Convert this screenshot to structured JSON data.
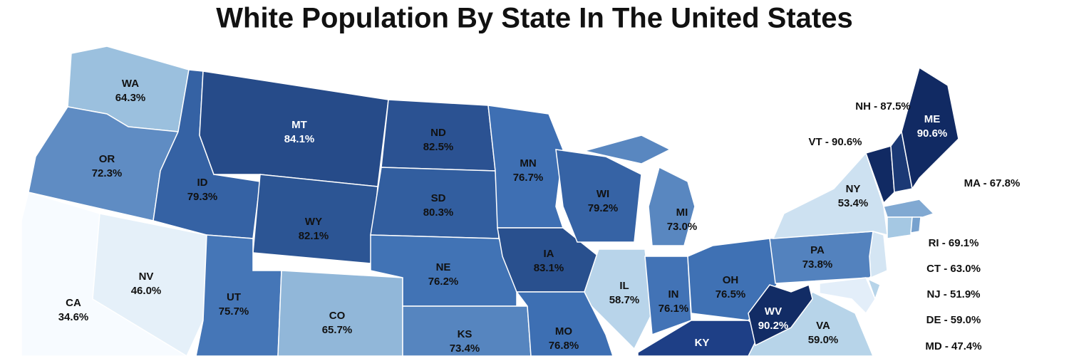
{
  "title": "White Population By State In The United States",
  "colors": [
    "#f7fbff",
    "#e1edf8",
    "#a8cbe4",
    "#3e70b4",
    "#112a63"
  ],
  "states": [
    {
      "abbr": "WA",
      "value": 64.3,
      "value_label": "64.3%"
    },
    {
      "abbr": "OR",
      "value": 72.3,
      "value_label": "72.3%"
    },
    {
      "abbr": "CA",
      "value": 34.6,
      "value_label": "34.6%"
    },
    {
      "abbr": "NV",
      "value": 46.0,
      "value_label": "46.0%"
    },
    {
      "abbr": "ID",
      "value": 79.3,
      "value_label": "79.3%"
    },
    {
      "abbr": "MT",
      "value": 84.1,
      "value_label": "84.1%"
    },
    {
      "abbr": "WY",
      "value": 82.1,
      "value_label": "82.1%"
    },
    {
      "abbr": "UT",
      "value": 75.7,
      "value_label": "75.7%"
    },
    {
      "abbr": "CO",
      "value": 65.7,
      "value_label": "65.7%"
    },
    {
      "abbr": "ND",
      "value": 82.5,
      "value_label": "82.5%"
    },
    {
      "abbr": "SD",
      "value": 80.3,
      "value_label": "80.3%"
    },
    {
      "abbr": "NE",
      "value": 76.2,
      "value_label": "76.2%"
    },
    {
      "abbr": "KS",
      "value": 73.4,
      "value_label": "73.4%"
    },
    {
      "abbr": "MN",
      "value": 76.7,
      "value_label": "76.7%"
    },
    {
      "abbr": "IA",
      "value": 83.1,
      "value_label": "83.1%"
    },
    {
      "abbr": "MO",
      "value": 76.8,
      "value_label": "76.8%"
    },
    {
      "abbr": "WI",
      "value": 79.2,
      "value_label": "79.2%"
    },
    {
      "abbr": "MI",
      "value": 73.0,
      "value_label": "73.0%"
    },
    {
      "abbr": "IL",
      "value": 58.7,
      "value_label": "58.7%"
    },
    {
      "abbr": "IN",
      "value": 76.1,
      "value_label": "76.1%"
    },
    {
      "abbr": "OH",
      "value": 76.5,
      "value_label": "76.5%"
    },
    {
      "abbr": "WV",
      "value": 90.2,
      "value_label": "90.2%"
    },
    {
      "abbr": "VA",
      "value": 59.0,
      "value_label": "59.0%"
    },
    {
      "abbr": "PA",
      "value": 73.8,
      "value_label": "73.8%"
    },
    {
      "abbr": "NY",
      "value": 53.4,
      "value_label": "53.4%"
    },
    {
      "abbr": "ME",
      "value": 90.6,
      "value_label": "90.6%"
    },
    {
      "abbr": "KY"
    }
  ],
  "callouts": [
    {
      "label": "NH - 87.5%",
      "value": 87.5
    },
    {
      "label": "VT - 90.6%",
      "value": 90.6
    },
    {
      "label": "MA - 67.8%",
      "value": 67.8
    },
    {
      "label": "RI - 69.1%",
      "value": 69.1
    },
    {
      "label": "CT - 63.0%",
      "value": 63.0
    },
    {
      "label": "NJ - 51.9%",
      "value": 51.9
    },
    {
      "label": "DE - 59.0%",
      "value": 59.0
    },
    {
      "label": "MD - 47.4%",
      "value": 47.4
    }
  ]
}
